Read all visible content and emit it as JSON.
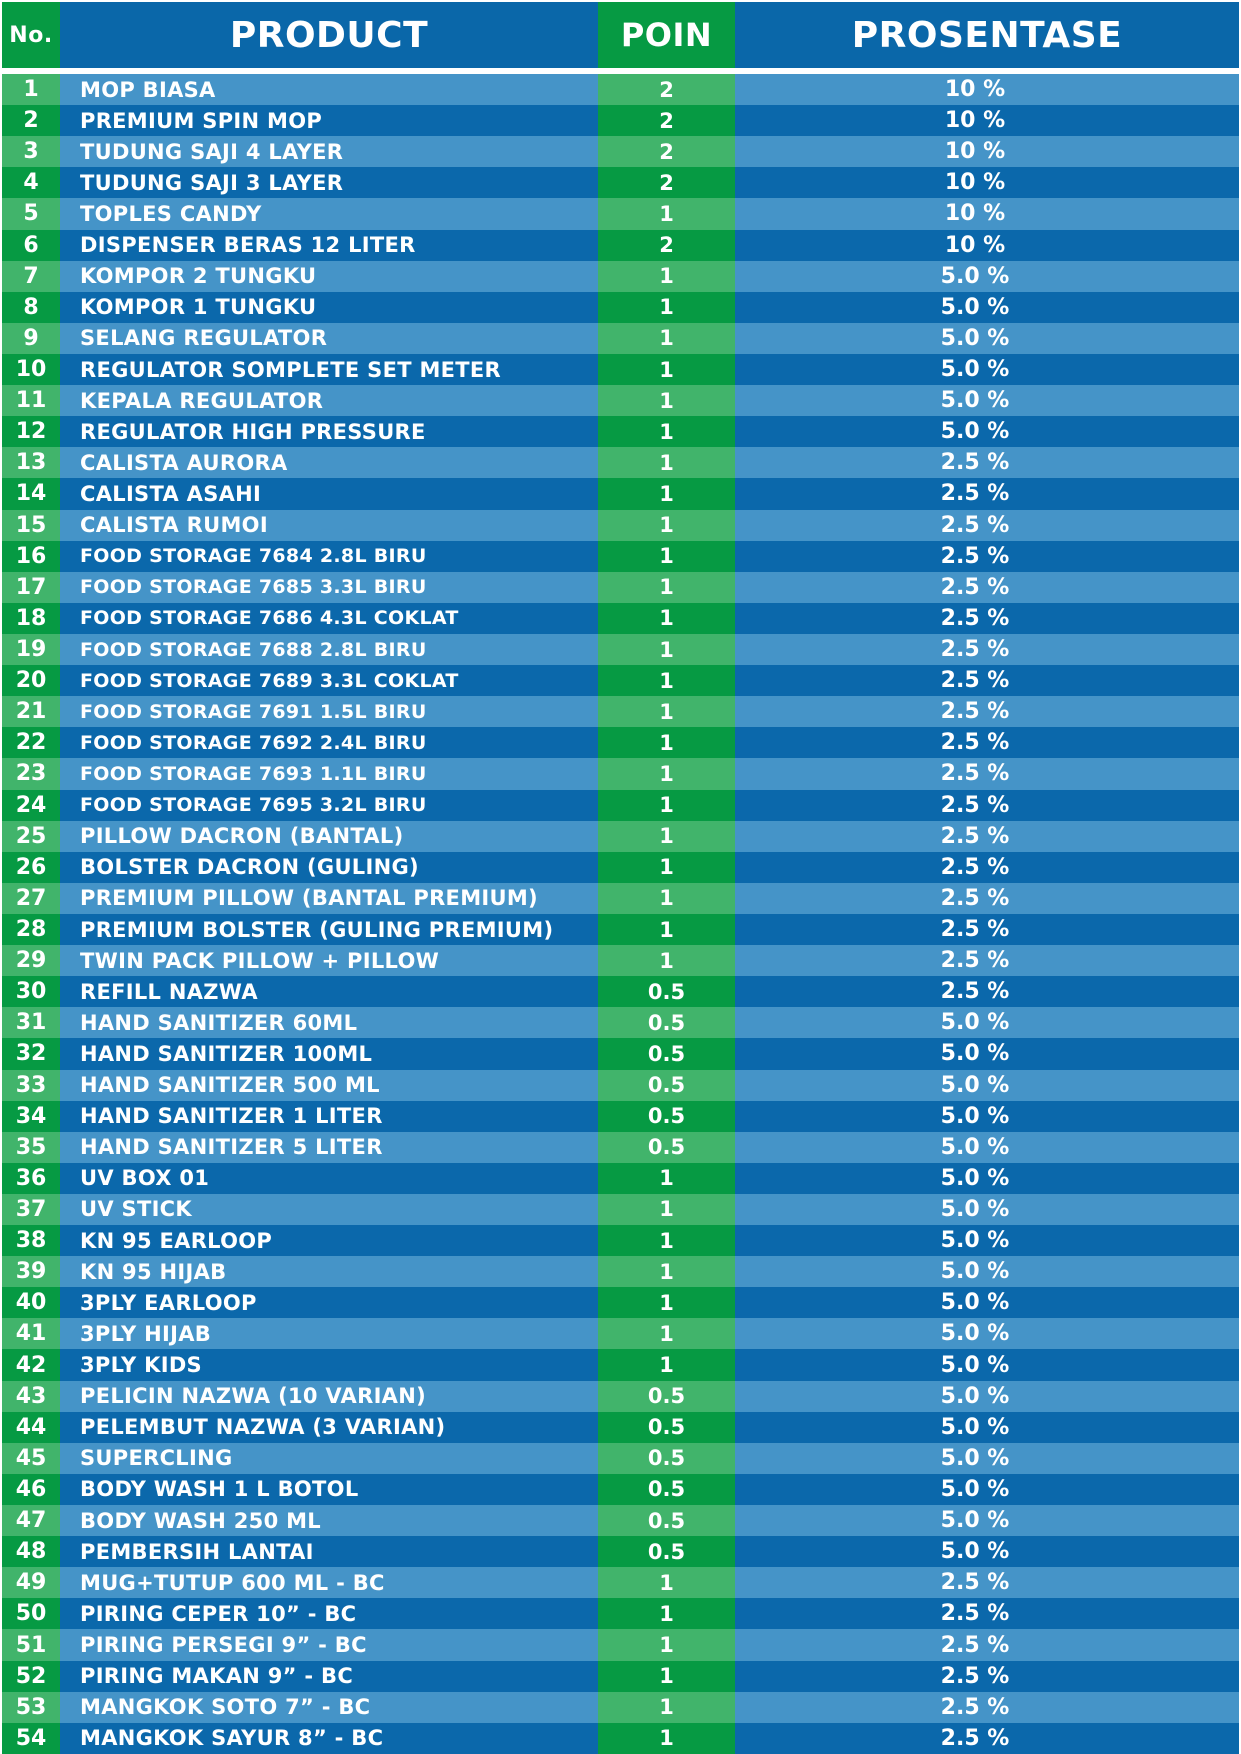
{
  "header": {
    "no": "No.",
    "product": "PRODUCT",
    "poin": "POIN",
    "prosentase": "PROSENTASE"
  },
  "colors": {
    "blue_dark": "#0b68ab",
    "blue_light": "#4594c8",
    "green_dark": "#069a43",
    "green_light": "#41b46b"
  },
  "rows": [
    {
      "no": "1",
      "product": "MOP BIASA",
      "poin": "2",
      "prosentase": "10 %"
    },
    {
      "no": "2",
      "product": "PREMIUM SPIN MOP",
      "poin": "2",
      "prosentase": "10 %"
    },
    {
      "no": "3",
      "product": "TUDUNG SAJI 4 LAYER",
      "poin": "2",
      "prosentase": "10 %"
    },
    {
      "no": "4",
      "product": "TUDUNG SAJI 3 LAYER",
      "poin": "2",
      "prosentase": "10 %"
    },
    {
      "no": "5",
      "product": "TOPLES CANDY",
      "poin": "1",
      "prosentase": "10 %"
    },
    {
      "no": "6",
      "product": "DISPENSER BERAS 12 LITER",
      "poin": "2",
      "prosentase": "10 %"
    },
    {
      "no": "7",
      "product": "KOMPOR 2 TUNGKU",
      "poin": "1",
      "prosentase": "5.0 %"
    },
    {
      "no": "8",
      "product": "KOMPOR 1 TUNGKU",
      "poin": "1",
      "prosentase": "5.0 %"
    },
    {
      "no": "9",
      "product": "SELANG REGULATOR",
      "poin": "1",
      "prosentase": "5.0 %"
    },
    {
      "no": "10",
      "product": "REGULATOR SOMPLETE SET METER",
      "poin": "1",
      "prosentase": "5.0 %"
    },
    {
      "no": "11",
      "product": "KEPALA REGULATOR",
      "poin": "1",
      "prosentase": "5.0 %"
    },
    {
      "no": "12",
      "product": "REGULATOR HIGH PRESSURE",
      "poin": "1",
      "prosentase": "5.0 %"
    },
    {
      "no": "13",
      "product": "CALISTA AURORA",
      "poin": "1",
      "prosentase": "2.5 %"
    },
    {
      "no": "14",
      "product": "CALISTA ASAHI",
      "poin": "1",
      "prosentase": "2.5 %"
    },
    {
      "no": "15",
      "product": "CALISTA RUMOI",
      "poin": "1",
      "prosentase": "2.5 %"
    },
    {
      "no": "16",
      "product": "FOOD STORAGE  7684 2.8L BIRU",
      "poin": "1",
      "prosentase": "2.5 %"
    },
    {
      "no": "17",
      "product": "FOOD STORAGE  7685 3.3L BIRU",
      "poin": "1",
      "prosentase": "2.5 %"
    },
    {
      "no": "18",
      "product": "FOOD STORAGE  7686 4.3L COKLAT",
      "poin": "1",
      "prosentase": "2.5 %"
    },
    {
      "no": "19",
      "product": "FOOD STORAGE  7688 2.8L BIRU",
      "poin": "1",
      "prosentase": "2.5 %"
    },
    {
      "no": "20",
      "product": "FOOD STORAGE  7689 3.3L COKLAT",
      "poin": "1",
      "prosentase": "2.5 %"
    },
    {
      "no": "21",
      "product": "FOOD STORAGE  7691 1.5L BIRU",
      "poin": "1",
      "prosentase": "2.5 %"
    },
    {
      "no": "22",
      "product": "FOOD STORAGE  7692 2.4L BIRU",
      "poin": "1",
      "prosentase": "2.5 %"
    },
    {
      "no": "23",
      "product": "FOOD STORAGE  7693 1.1L BIRU",
      "poin": "1",
      "prosentase": "2.5 %"
    },
    {
      "no": "24",
      "product": "FOOD STORAGE  7695 3.2L BIRU",
      "poin": "1",
      "prosentase": "2.5 %"
    },
    {
      "no": "25",
      "product": "PILLOW DACRON (BANTAL)",
      "poin": "1",
      "prosentase": "2.5 %"
    },
    {
      "no": "26",
      "product": "BOLSTER DACRON (GULING)",
      "poin": "1",
      "prosentase": "2.5 %"
    },
    {
      "no": "27",
      "product": "PREMIUM PILLOW (BANTAL PREMIUM)",
      "poin": "1",
      "prosentase": "2.5 %"
    },
    {
      "no": "28",
      "product": "PREMIUM BOLSTER (GULING PREMIUM)",
      "poin": "1",
      "prosentase": "2.5 %"
    },
    {
      "no": "29",
      "product": "TWIN PACK PILLOW + PILLOW",
      "poin": "1",
      "prosentase": "2.5 %"
    },
    {
      "no": "30",
      "product": "REFILL NAZWA",
      "poin": "0.5",
      "prosentase": "2.5 %"
    },
    {
      "no": "31",
      "product": "HAND SANITIZER 60ML",
      "poin": "0.5",
      "prosentase": "5.0 %"
    },
    {
      "no": "32",
      "product": "HAND SANITIZER 100ML",
      "poin": "0.5",
      "prosentase": "5.0 %"
    },
    {
      "no": "33",
      "product": "HAND SANITIZER 500 ML",
      "poin": "0.5",
      "prosentase": "5.0 %"
    },
    {
      "no": "34",
      "product": "HAND SANITIZER 1 LITER",
      "poin": "0.5",
      "prosentase": "5.0 %"
    },
    {
      "no": "35",
      "product": "HAND SANITIZER 5 LITER",
      "poin": "0.5",
      "prosentase": "5.0 %"
    },
    {
      "no": "36",
      "product": "UV BOX 01",
      "poin": "1",
      "prosentase": "5.0 %"
    },
    {
      "no": "37",
      "product": "UV STICK",
      "poin": "1",
      "prosentase": "5.0 %"
    },
    {
      "no": "38",
      "product": "KN 95 EARLOOP",
      "poin": "1",
      "prosentase": "5.0 %"
    },
    {
      "no": "39",
      "product": "KN 95 HIJAB",
      "poin": "1",
      "prosentase": "5.0 %"
    },
    {
      "no": "40",
      "product": "3PLY EARLOOP",
      "poin": "1",
      "prosentase": "5.0 %"
    },
    {
      "no": "41",
      "product": "3PLY HIJAB",
      "poin": "1",
      "prosentase": "5.0 %"
    },
    {
      "no": "42",
      "product": "3PLY KIDS",
      "poin": "1",
      "prosentase": "5.0 %"
    },
    {
      "no": "43",
      "product": "PELICIN NAZWA (10 VARIAN)",
      "poin": "0.5",
      "prosentase": "5.0 %"
    },
    {
      "no": "44",
      "product": "PELEMBUT NAZWA (3 VARIAN)",
      "poin": "0.5",
      "prosentase": "5.0 %"
    },
    {
      "no": "45",
      "product": "SUPERCLING",
      "poin": "0.5",
      "prosentase": "5.0 %"
    },
    {
      "no": "46",
      "product": "BODY WASH 1 L BOTOL",
      "poin": "0.5",
      "prosentase": "5.0 %"
    },
    {
      "no": "47",
      "product": "BODY WASH 250 ML",
      "poin": "0.5",
      "prosentase": "5.0 %"
    },
    {
      "no": "48",
      "product": "PEMBERSIH LANTAI",
      "poin": "0.5",
      "prosentase": "5.0 %"
    },
    {
      "no": "49",
      "product": "MUG+TUTUP 600 ML - BC",
      "poin": "1",
      "prosentase": "2.5 %"
    },
    {
      "no": "50",
      "product": "PIRING CEPER 10” - BC",
      "poin": "1",
      "prosentase": "2.5 %"
    },
    {
      "no": "51",
      "product": "PIRING PERSEGI 9” - BC",
      "poin": "1",
      "prosentase": "2.5 %"
    },
    {
      "no": "52",
      "product": "PIRING MAKAN 9” - BC",
      "poin": "1",
      "prosentase": "2.5 %"
    },
    {
      "no": "53",
      "product": "MANGKOK SOTO 7” - BC",
      "poin": "1",
      "prosentase": "2.5 %"
    },
    {
      "no": "54",
      "product": "MANGKOK SAYUR 8” - BC",
      "poin": "1",
      "prosentase": "2.5 %"
    }
  ]
}
